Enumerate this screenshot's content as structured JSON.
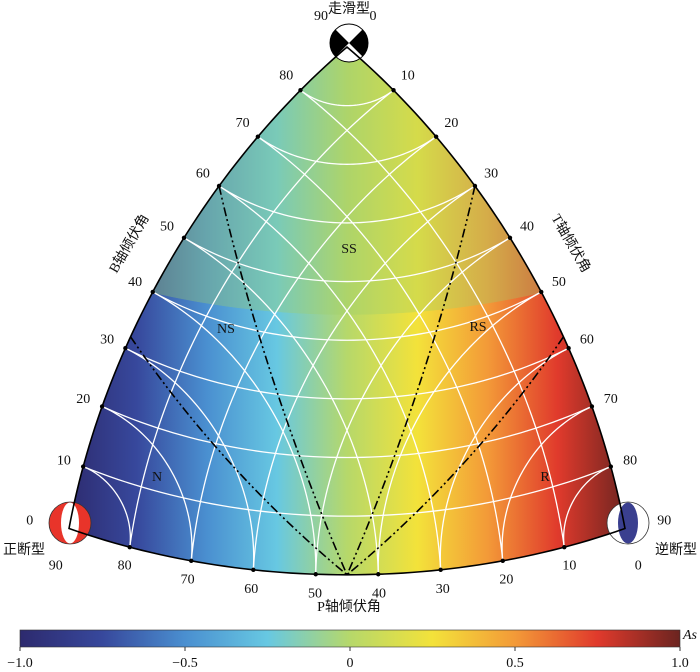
{
  "chart_data": {
    "type": "ternary",
    "corner_labels": {
      "top": "走滑型",
      "left": "正断型",
      "right": "逆断型"
    },
    "axes": {
      "p": {
        "title": "P轴倾伏角",
        "ticks": [
          0,
          10,
          20,
          30,
          40,
          50,
          60,
          70,
          80,
          90
        ]
      },
      "b": {
        "title": "B轴倾伏角",
        "ticks": [
          0,
          10,
          20,
          30,
          40,
          50,
          60,
          70,
          80,
          90
        ]
      },
      "t": {
        "title": "T轴倾伏角",
        "ticks": [
          0,
          10,
          20,
          30,
          40,
          50,
          60,
          70,
          80,
          90
        ]
      }
    },
    "regions": [
      "SS",
      "NS",
      "RS",
      "N",
      "R"
    ],
    "grid": true,
    "colorbar": {
      "label": "As",
      "lim": [
        -1,
        1
      ],
      "ticks": [
        {
          "value": -1,
          "label": "−1.0"
        },
        {
          "value": -0.5,
          "label": "−0.5"
        },
        0,
        0.5,
        {
          "value": 1,
          "label": "1.0"
        }
      ],
      "colormap": [
        "#2d2a6e",
        "#37489c",
        "#4a8fd0",
        "#67c8e2",
        "#b6d86a",
        "#f3e23a",
        "#f39a38",
        "#e03a2c",
        "#6b2420"
      ]
    }
  }
}
